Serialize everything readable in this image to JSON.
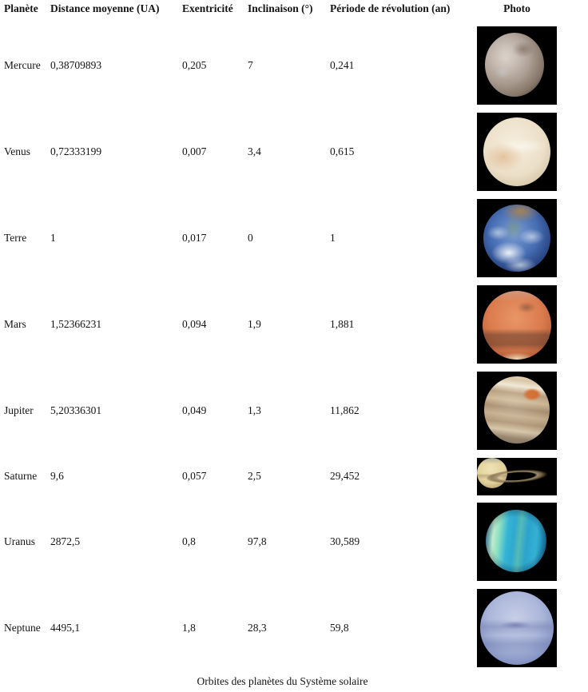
{
  "table": {
    "headers": {
      "planet": "Planète",
      "distance": "Distance moyenne (UA)",
      "eccentricity": "Exentricité",
      "inclination": "Inclinaison  (°)",
      "period": "Période de révolution (an)",
      "photo": "Photo"
    },
    "rows": [
      {
        "name": "Mercure",
        "distance": "0,38709893",
        "eccentricity": "0,205",
        "inclination": "7",
        "period": "0,241",
        "photo_colors": [
          "#ab9d92",
          "#000000"
        ]
      },
      {
        "name": "Venus",
        "distance": "0,72333199",
        "eccentricity": "0,007",
        "inclination": "3,4",
        "period": "0,615",
        "photo_colors": [
          "#ecdfc8",
          "#000000"
        ]
      },
      {
        "name": "Terre",
        "distance": "1",
        "eccentricity": "0,017",
        "inclination": "0",
        "period": "1",
        "photo_colors": [
          "#466db2",
          "#ffffff",
          "#000000"
        ]
      },
      {
        "name": "Mars",
        "distance": "1,52366231",
        "eccentricity": "0,094",
        "inclination": "1,9",
        "period": "1,881",
        "photo_colors": [
          "#da7b4c",
          "#63 3e2d",
          "#000000"
        ]
      },
      {
        "name": "Jupiter",
        "distance": "5,20336301",
        "eccentricity": "0,049",
        "inclination": "1,3",
        "period": "11,862",
        "photo_colors": [
          "#cfb996",
          "#d2692c",
          "#000000"
        ]
      },
      {
        "name": "Saturne",
        "distance": "9,6",
        "eccentricity": "0,057",
        "inclination": "2,5",
        "period": "29,452",
        "photo_colors": [
          "#e2d09a",
          "#a89470",
          "#000000"
        ]
      },
      {
        "name": "Uranus",
        "distance": "2872,5",
        "eccentricity": "0,8",
        "inclination": "97,8",
        "period": "30,589",
        "photo_colors": [
          "#35b4d6",
          "#bfeccc",
          "#000000"
        ]
      },
      {
        "name": "Neptune",
        "distance": "4495,1",
        "eccentricity": "1,8",
        "inclination": "28,3",
        "period": "59,8",
        "photo_colors": [
          "#abb6da",
          "#000000"
        ]
      }
    ]
  },
  "caption": "Orbites des planètes du Système solaire",
  "colors": {
    "text": "#141414",
    "background": "#ffffff",
    "photo_background": "#000000"
  }
}
